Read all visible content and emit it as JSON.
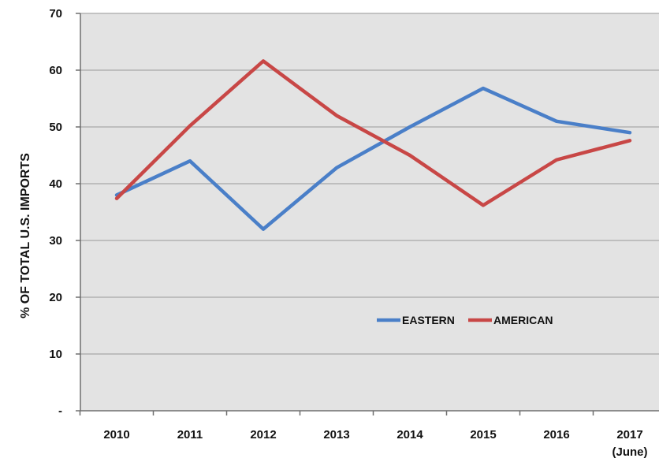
{
  "chart_data": {
    "type": "line",
    "title": "",
    "xlabel": "",
    "ylabel": "% OF TOTAL U.S. IMPORTS",
    "categories": [
      "2010",
      "2011",
      "2012",
      "2013",
      "2014",
      "2015",
      "2016",
      "2017"
    ],
    "category_sublabels": [
      "",
      "",
      "",
      "",
      "",
      "",
      "",
      "(June)"
    ],
    "ylim": [
      0,
      70
    ],
    "yticks": [
      0,
      10,
      20,
      30,
      40,
      50,
      60,
      70
    ],
    "ytick_labels": [
      "-",
      "10",
      "20",
      "30",
      "40",
      "50",
      "60",
      "70"
    ],
    "grid": true,
    "legend_position": "center-right",
    "series": [
      {
        "name": "EASTERN",
        "color": "#4a7fc8",
        "values": [
          38,
          44,
          32,
          42.8,
          50,
          56.8,
          51,
          49
        ]
      },
      {
        "name": "AMERICAN",
        "color": "#c84746",
        "values": [
          37.4,
          50.2,
          61.6,
          52,
          45,
          36.2,
          44.2,
          47.6
        ]
      }
    ],
    "plot_background": "#e3e3e3",
    "gridline_color": "#a8a8a8"
  }
}
